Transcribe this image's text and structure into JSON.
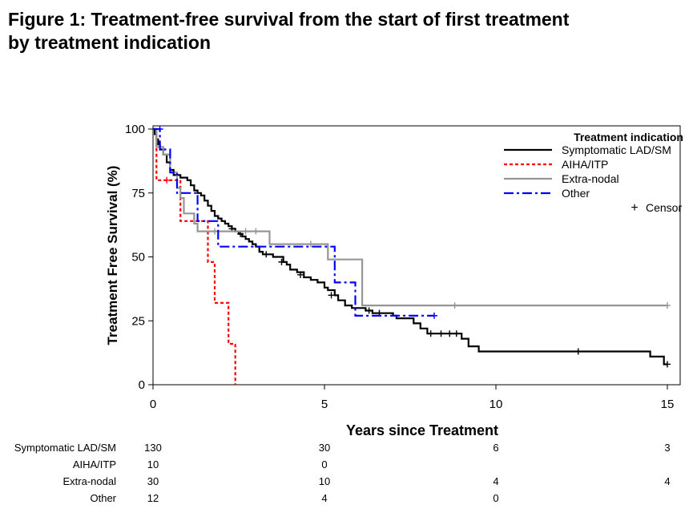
{
  "figure": {
    "title_line1": "Figure 1: Treatment-free survival from the start of first treatment",
    "title_line2": "by treatment indication"
  },
  "chart_data": {
    "type": "line",
    "subtype": "kaplan-meier step",
    "xlabel": "Years since Treatment",
    "ylabel": "Treatment Free Survival (%)",
    "xlim": [
      0,
      15.2
    ],
    "ylim": [
      0,
      100
    ],
    "xticks": [
      0,
      5,
      10,
      15
    ],
    "yticks": [
      0,
      25,
      50,
      75,
      100
    ],
    "legend": {
      "title": "Treatment indication",
      "position": "top-right",
      "censor_label": "Censor",
      "censor_symbol": "+"
    },
    "series": [
      {
        "name": "Symptomatic LAD/SM",
        "color": "#000000",
        "style": "solid",
        "points": [
          [
            0,
            100
          ],
          [
            0.05,
            98
          ],
          [
            0.1,
            96
          ],
          [
            0.15,
            94
          ],
          [
            0.2,
            92
          ],
          [
            0.3,
            90
          ],
          [
            0.4,
            87
          ],
          [
            0.5,
            84
          ],
          [
            0.6,
            82
          ],
          [
            0.8,
            81
          ],
          [
            1.0,
            80
          ],
          [
            1.1,
            78
          ],
          [
            1.2,
            76
          ],
          [
            1.3,
            75
          ],
          [
            1.4,
            74
          ],
          [
            1.5,
            72
          ],
          [
            1.6,
            70
          ],
          [
            1.7,
            68
          ],
          [
            1.8,
            66
          ],
          [
            1.9,
            65
          ],
          [
            2.0,
            64
          ],
          [
            2.1,
            63
          ],
          [
            2.2,
            62
          ],
          [
            2.3,
            61
          ],
          [
            2.4,
            60
          ],
          [
            2.5,
            59
          ],
          [
            2.6,
            58
          ],
          [
            2.7,
            57
          ],
          [
            2.8,
            56
          ],
          [
            2.9,
            55
          ],
          [
            3.0,
            54
          ],
          [
            3.1,
            52
          ],
          [
            3.2,
            51
          ],
          [
            3.5,
            50
          ],
          [
            3.8,
            48
          ],
          [
            3.9,
            47
          ],
          [
            4.0,
            45
          ],
          [
            4.2,
            44
          ],
          [
            4.4,
            42
          ],
          [
            4.6,
            41
          ],
          [
            4.8,
            40
          ],
          [
            5.0,
            38
          ],
          [
            5.1,
            37
          ],
          [
            5.3,
            35
          ],
          [
            5.4,
            33
          ],
          [
            5.6,
            31
          ],
          [
            5.8,
            30
          ],
          [
            6.2,
            29
          ],
          [
            6.4,
            28
          ],
          [
            7.0,
            27
          ],
          [
            7.1,
            26
          ],
          [
            7.6,
            24
          ],
          [
            7.8,
            22
          ],
          [
            8.0,
            20
          ],
          [
            9.0,
            18
          ],
          [
            9.2,
            15
          ],
          [
            9.5,
            13
          ],
          [
            14.5,
            11
          ],
          [
            14.9,
            8
          ],
          [
            15.0,
            8
          ]
        ],
        "censors": [
          [
            2.3,
            61
          ],
          [
            2.55,
            59
          ],
          [
            3.3,
            51
          ],
          [
            3.75,
            48
          ],
          [
            4.3,
            43
          ],
          [
            5.2,
            35
          ],
          [
            6.3,
            29
          ],
          [
            6.6,
            28
          ],
          [
            8.1,
            20
          ],
          [
            8.4,
            20
          ],
          [
            8.65,
            20
          ],
          [
            8.85,
            20
          ],
          [
            12.4,
            13
          ],
          [
            15.0,
            8
          ]
        ]
      },
      {
        "name": "AIHA/ITP",
        "color": "#ff0000",
        "style": "dotted",
        "points": [
          [
            0,
            100
          ],
          [
            0.1,
            80
          ],
          [
            0.8,
            80
          ],
          [
            0.8,
            64
          ],
          [
            1.6,
            64
          ],
          [
            1.6,
            48
          ],
          [
            1.8,
            48
          ],
          [
            1.8,
            32
          ],
          [
            2.2,
            32
          ],
          [
            2.2,
            16
          ],
          [
            2.4,
            16
          ],
          [
            2.4,
            0
          ]
        ],
        "censors": [
          [
            0.4,
            80
          ]
        ]
      },
      {
        "name": "Extra-nodal",
        "color": "#969696",
        "style": "solid",
        "points": [
          [
            0,
            100
          ],
          [
            0.1,
            93
          ],
          [
            0.3,
            90
          ],
          [
            0.5,
            83
          ],
          [
            0.7,
            77
          ],
          [
            0.8,
            73
          ],
          [
            0.9,
            67
          ],
          [
            1.2,
            63
          ],
          [
            1.3,
            60
          ],
          [
            2.5,
            60
          ],
          [
            3.4,
            55
          ],
          [
            5.0,
            55
          ],
          [
            5.1,
            49
          ],
          [
            6.0,
            49
          ],
          [
            6.1,
            31
          ],
          [
            15.0,
            31
          ]
        ],
        "censors": [
          [
            1.8,
            60
          ],
          [
            2.7,
            60
          ],
          [
            3.0,
            60
          ],
          [
            4.6,
            55
          ],
          [
            8.8,
            31
          ],
          [
            15.0,
            31
          ]
        ]
      },
      {
        "name": "Other",
        "color": "#0000ff",
        "style": "dashdot",
        "points": [
          [
            0,
            100
          ],
          [
            0.2,
            92
          ],
          [
            0.5,
            83
          ],
          [
            0.7,
            75
          ],
          [
            1.2,
            75
          ],
          [
            1.3,
            64
          ],
          [
            1.8,
            64
          ],
          [
            1.9,
            54
          ],
          [
            5.3,
            54
          ],
          [
            5.3,
            40
          ],
          [
            5.9,
            40
          ],
          [
            5.9,
            27
          ],
          [
            8.2,
            27
          ]
        ],
        "censors": [
          [
            0.2,
            100
          ],
          [
            8.2,
            27
          ]
        ]
      }
    ],
    "risk_table": {
      "time_points": [
        0,
        5,
        10,
        15
      ],
      "rows": [
        {
          "label": "Symptomatic LAD/SM",
          "counts": [
            "130",
            "30",
            "6",
            "3"
          ]
        },
        {
          "label": "AIHA/ITP",
          "counts": [
            "10",
            "0",
            "",
            ""
          ]
        },
        {
          "label": "Extra-nodal",
          "counts": [
            "30",
            "10",
            "4",
            "4"
          ]
        },
        {
          "label": "Other",
          "counts": [
            "12",
            "4",
            "0",
            ""
          ]
        }
      ]
    }
  }
}
